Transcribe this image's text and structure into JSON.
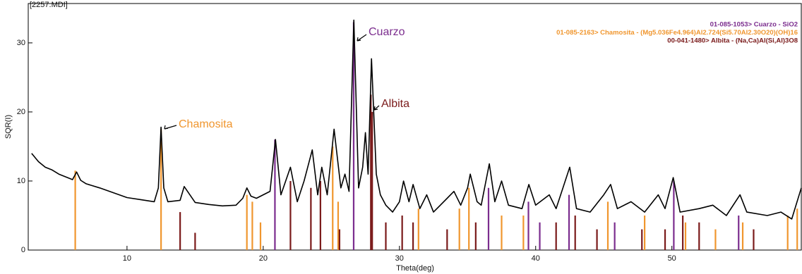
{
  "chart_data": {
    "type": "line",
    "title": "[2257.MDI]",
    "xlabel": "Theta(deg)",
    "ylabel": "SQR(I)",
    "color": "#000000",
    "xlim": [
      2.75,
      59.5
    ],
    "ylim": [
      0,
      35.7
    ],
    "xticks": [
      10,
      20,
      30,
      40,
      50
    ],
    "yticks": [
      0,
      10,
      20,
      30
    ],
    "x": [
      3,
      3.5,
      4,
      4.5,
      5,
      5.5,
      6,
      6.3,
      6.6,
      7,
      8,
      9,
      10,
      11,
      12,
      12.3,
      12.5,
      12.7,
      13,
      13.9,
      14.2,
      15,
      16,
      17,
      18,
      18.5,
      18.8,
      19.1,
      19.5,
      20.5,
      20.9,
      21.3,
      22.0,
      22.5,
      23,
      23.6,
      24,
      24.3,
      24.7,
      25.2,
      25.7,
      26,
      26.3,
      26.65,
      27,
      27.3,
      27.5,
      27.7,
      27.95,
      28.3,
      28.6,
      29,
      29.5,
      30,
      30.3,
      30.7,
      31,
      31.5,
      32,
      32.5,
      33,
      34,
      34.5,
      35,
      35.2,
      35.7,
      36,
      36.6,
      37,
      37.5,
      38,
      39,
      39.5,
      40,
      41,
      41.5,
      42.5,
      43,
      44,
      45,
      45.5,
      46,
      47,
      48,
      49,
      49.5,
      50.1,
      50.6,
      52,
      53,
      54,
      55,
      55.5,
      57,
      58,
      58.8,
      59.5
    ],
    "values": [
      14,
      12.8,
      12,
      11.6,
      11,
      10.6,
      10.2,
      11.3,
      10.1,
      9.6,
      9,
      8.3,
      7.6,
      7.3,
      7,
      9,
      17.8,
      9,
      7,
      7.2,
      9.2,
      6.9,
      6.6,
      6.4,
      6.5,
      7.5,
      9,
      7.8,
      7.5,
      8.5,
      16,
      8,
      12,
      7,
      10,
      14.5,
      8,
      12,
      8,
      17.5,
      9,
      11,
      8.5,
      33.3,
      9,
      12,
      17,
      11,
      27.7,
      11,
      8,
      6.5,
      5.5,
      7,
      10,
      7,
      9.5,
      6,
      8,
      5.5,
      6.5,
      8.5,
      6.5,
      9,
      11,
      7,
      6.5,
      12.5,
      7,
      10,
      6.5,
      6,
      9.5,
      6.5,
      8,
      6,
      12,
      6,
      5.5,
      8,
      9.5,
      6,
      7,
      5.5,
      8,
      6,
      10.5,
      5.5,
      6,
      6.5,
      5,
      8,
      5.5,
      5,
      5.5,
      4.5,
      9
    ],
    "series": [
      {
        "name": "01-085-1053> Cuarzo - SiO2",
        "color": "#7b2d8e",
        "x": [
          20.86,
          26.64,
          36.54,
          39.47,
          40.3,
          42.45,
          45.8,
          50.14,
          54.9
        ],
        "values": [
          16,
          33,
          9,
          7,
          4,
          8,
          4,
          10,
          5
        ]
      },
      {
        "name": "01-085-2163> Chamosita - (Mg5.036Fe4.964)Al2.724(Si5.70Al2.30O20)(OH)16",
        "color": "#f0962e",
        "x": [
          6.2,
          12.5,
          18.8,
          19.2,
          19.8,
          25.1,
          25.5,
          31.4,
          34.4,
          35.1,
          37.5,
          39.1,
          45.3,
          48.0,
          51.0,
          53.2,
          55.2,
          58.5,
          59.2
        ],
        "values": [
          11.5,
          17.5,
          8,
          7,
          4,
          15,
          7,
          6,
          6,
          9,
          5,
          5,
          7,
          5,
          4,
          3,
          4,
          5,
          6
        ]
      },
      {
        "name": "00-041-1480> Albita - (Na,Ca)Al(Si,Al)3O8",
        "color": "#7a1a1a",
        "x": [
          13.9,
          15.0,
          22.0,
          23.5,
          24.2,
          25.6,
          27.9,
          28.0,
          29.0,
          30.2,
          31.0,
          33.5,
          35.6,
          41.5,
          42.9,
          44.5,
          47.8,
          49.5,
          50.8,
          52.0,
          56.0
        ],
        "values": [
          5.5,
          2.5,
          10,
          9,
          10,
          3,
          22.5,
          20,
          4,
          5,
          4,
          3,
          4,
          4,
          5,
          3,
          3,
          3,
          5,
          4,
          3
        ]
      }
    ],
    "annotations": [
      {
        "text": "Cuarzo",
        "color": "#7b2d8e"
      },
      {
        "text": "Albita",
        "color": "#7a1a1a"
      },
      {
        "text": "Chamosita",
        "color": "#f0962e"
      }
    ]
  }
}
